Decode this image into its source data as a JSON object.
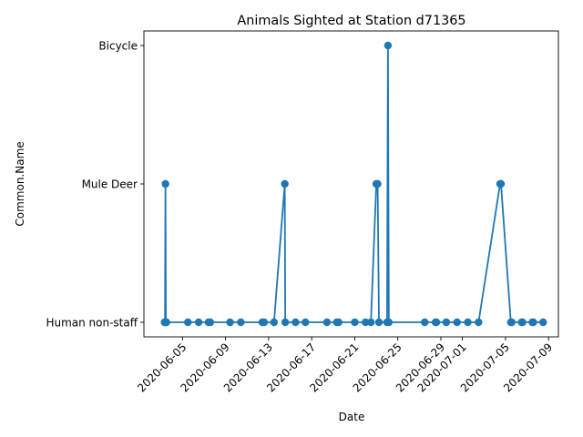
{
  "chart_data": {
    "type": "line",
    "title": "Animals Sighted at Station d71365",
    "xlabel": "Date",
    "ylabel": "Common.Name",
    "categories": [
      "Human non-staff",
      "Mule Deer",
      "Bicycle"
    ],
    "x_ticks": [
      "2020-06-05",
      "2020-06-09",
      "2020-06-13",
      "2020-06-17",
      "2020-06-21",
      "2020-06-25",
      "2020-06-29",
      "2020-07-01",
      "2020-07-05",
      "2020-07-09"
    ],
    "xlim": [
      "2020-06-01T10:00",
      "2020-07-09T22:00"
    ],
    "grid": false,
    "legend": "none",
    "series": [
      {
        "color": "#1f77b4",
        "marker": "circle",
        "points": [
          {
            "x": "2020-06-03T08:00",
            "y": "Human non-staff"
          },
          {
            "x": "2020-06-03T09:00",
            "y": "Human non-staff"
          },
          {
            "x": "2020-06-03T10:00",
            "y": "Mule Deer"
          },
          {
            "x": "2020-06-03T11:00",
            "y": "Human non-staff"
          },
          {
            "x": "2020-06-03T12:00",
            "y": "Human non-staff"
          },
          {
            "x": "2020-06-05T12:00",
            "y": "Human non-staff"
          },
          {
            "x": "2020-06-06T12:00",
            "y": "Human non-staff"
          },
          {
            "x": "2020-06-07T10:00",
            "y": "Human non-staff"
          },
          {
            "x": "2020-06-07T14:00",
            "y": "Human non-staff"
          },
          {
            "x": "2020-06-09T10:00",
            "y": "Human non-staff"
          },
          {
            "x": "2020-06-10T10:00",
            "y": "Human non-staff"
          },
          {
            "x": "2020-06-12T10:00",
            "y": "Human non-staff"
          },
          {
            "x": "2020-06-12T14:00",
            "y": "Human non-staff"
          },
          {
            "x": "2020-06-13T12:00",
            "y": "Human non-staff"
          },
          {
            "x": "2020-06-14T12:00",
            "y": "Mule Deer"
          },
          {
            "x": "2020-06-14T13:00",
            "y": "Human non-staff"
          },
          {
            "x": "2020-06-15T12:00",
            "y": "Human non-staff"
          },
          {
            "x": "2020-06-16T10:00",
            "y": "Human non-staff"
          },
          {
            "x": "2020-06-18T10:00",
            "y": "Human non-staff"
          },
          {
            "x": "2020-06-19T08:00",
            "y": "Human non-staff"
          },
          {
            "x": "2020-06-19T12:00",
            "y": "Human non-staff"
          },
          {
            "x": "2020-06-21T00:00",
            "y": "Human non-staff"
          },
          {
            "x": "2020-06-22T00:00",
            "y": "Human non-staff"
          },
          {
            "x": "2020-06-22T12:00",
            "y": "Human non-staff"
          },
          {
            "x": "2020-06-23T00:00",
            "y": "Mule Deer"
          },
          {
            "x": "2020-06-23T03:00",
            "y": "Mule Deer"
          },
          {
            "x": "2020-06-23T06:00",
            "y": "Human non-staff"
          },
          {
            "x": "2020-06-24T00:00",
            "y": "Human non-staff"
          },
          {
            "x": "2020-06-24T02:00",
            "y": "Bicycle"
          },
          {
            "x": "2020-06-24T04:00",
            "y": "Human non-staff"
          },
          {
            "x": "2020-06-27T12:00",
            "y": "Human non-staff"
          },
          {
            "x": "2020-06-28T12:00",
            "y": "Human non-staff"
          },
          {
            "x": "2020-06-28T14:00",
            "y": "Human non-staff"
          },
          {
            "x": "2020-06-29T12:00",
            "y": "Human non-staff"
          },
          {
            "x": "2020-06-30T12:00",
            "y": "Human non-staff"
          },
          {
            "x": "2020-07-01T12:00",
            "y": "Human non-staff"
          },
          {
            "x": "2020-07-02T12:00",
            "y": "Human non-staff"
          },
          {
            "x": "2020-07-04T12:00",
            "y": "Mule Deer"
          },
          {
            "x": "2020-07-04T14:00",
            "y": "Mule Deer"
          },
          {
            "x": "2020-07-05T12:00",
            "y": "Human non-staff"
          },
          {
            "x": "2020-07-05T14:00",
            "y": "Human non-staff"
          },
          {
            "x": "2020-07-06T12:00",
            "y": "Human non-staff"
          },
          {
            "x": "2020-07-06T14:00",
            "y": "Human non-staff"
          },
          {
            "x": "2020-07-07T12:00",
            "y": "Human non-staff"
          },
          {
            "x": "2020-07-07T14:00",
            "y": "Human non-staff"
          },
          {
            "x": "2020-07-08T12:00",
            "y": "Human non-staff"
          }
        ]
      }
    ]
  }
}
